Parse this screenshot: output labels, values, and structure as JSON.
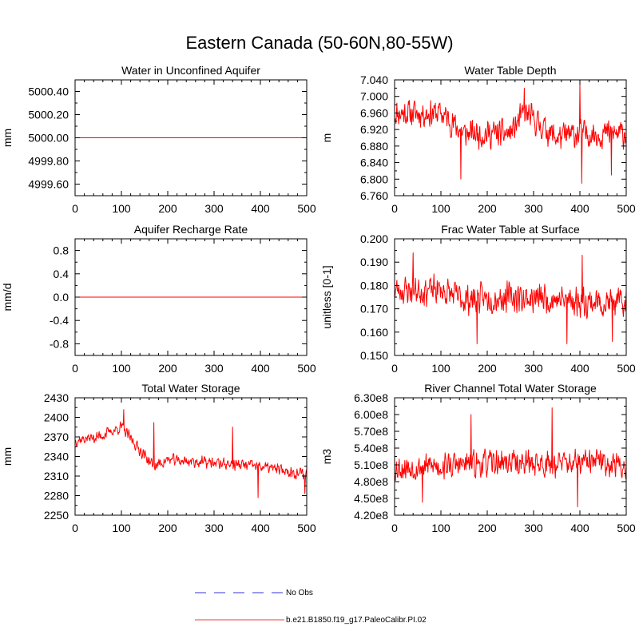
{
  "title": "Eastern Canada (50-60N,80-55W)",
  "colors": {
    "model": "#ff0000",
    "obs": "#9a9aee",
    "legend_model": "#f08080"
  },
  "legend": {
    "obs_label": "No Obs",
    "model_label": "b.e21.B1850.f19_g17.PaleoCalibr.PI.02"
  },
  "chart_data": [
    {
      "type": "line",
      "title": "Water in Unconfined Aquifer",
      "ylabel": "mm",
      "xlim": [
        0,
        500
      ],
      "ylim": [
        4999.5,
        5000.5
      ],
      "xticks": [
        0,
        100,
        200,
        300,
        400,
        500
      ],
      "xtick_labels": [
        "0",
        "100",
        "200",
        "300",
        "400",
        "500"
      ],
      "yticks": [
        4999.6,
        4999.8,
        5000.0,
        5000.2,
        5000.4
      ],
      "ytick_labels": [
        "4999.60",
        "4999.80",
        "5000.00",
        "5000.20",
        "5000.40"
      ],
      "series": {
        "name": "b.e21.B1850.f19_g17.PaleoCalibr.PI.02",
        "kind": "constant",
        "value": 5000.0
      }
    },
    {
      "type": "line",
      "title": "Water Table Depth",
      "ylabel": "m",
      "xlim": [
        0,
        500
      ],
      "ylim": [
        6.76,
        7.04
      ],
      "xticks": [
        0,
        100,
        200,
        300,
        400,
        500
      ],
      "xtick_labels": [
        "0",
        "100",
        "200",
        "300",
        "400",
        "500"
      ],
      "yticks": [
        6.76,
        6.8,
        6.84,
        6.88,
        6.92,
        6.96,
        7.0,
        7.04
      ],
      "ytick_labels": [
        "6.760",
        "6.800",
        "6.840",
        "6.880",
        "6.920",
        "6.960",
        "7.000",
        "7.040"
      ],
      "series": {
        "name": "b.e21.B1850.f19_g17.PaleoCalibr.PI.02",
        "kind": "noisy",
        "seed": 11,
        "control_x": [
          0,
          100,
          150,
          250,
          280,
          350,
          400,
          500
        ],
        "control_y": [
          6.96,
          6.96,
          6.91,
          6.91,
          6.96,
          6.9,
          6.91,
          6.91
        ],
        "noise": 0.045,
        "spikes": [
          [
            143,
            6.8
          ],
          [
            280,
            7.02
          ],
          [
            400,
            7.03
          ],
          [
            404,
            6.79
          ],
          [
            468,
            6.81
          ]
        ]
      }
    },
    {
      "type": "line",
      "title": "Aquifer Recharge Rate",
      "ylabel": "mm/d",
      "xlim": [
        0,
        500
      ],
      "ylim": [
        -1.0,
        1.0
      ],
      "xticks": [
        0,
        100,
        200,
        300,
        400,
        500
      ],
      "xtick_labels": [
        "0",
        "100",
        "200",
        "300",
        "400",
        "500"
      ],
      "yticks": [
        -0.8,
        -0.4,
        0.0,
        0.4,
        0.8
      ],
      "ytick_labels": [
        "-0.8",
        "-0.4",
        "0.0",
        "0.4",
        "0.8"
      ],
      "series": {
        "name": "b.e21.B1850.f19_g17.PaleoCalibr.PI.02",
        "kind": "constant",
        "value": 0.0
      }
    },
    {
      "type": "line",
      "title": "Frac Water Table at Surface",
      "ylabel": "unitless [0-1]",
      "xlim": [
        0,
        500
      ],
      "ylim": [
        0.15,
        0.2
      ],
      "xticks": [
        0,
        100,
        200,
        300,
        400,
        500
      ],
      "xtick_labels": [
        "0",
        "100",
        "200",
        "300",
        "400",
        "500"
      ],
      "yticks": [
        0.15,
        0.16,
        0.17,
        0.18,
        0.19,
        0.2
      ],
      "ytick_labels": [
        "0.150",
        "0.160",
        "0.170",
        "0.180",
        "0.190",
        "0.200"
      ],
      "series": {
        "name": "b.e21.B1850.f19_g17.PaleoCalibr.PI.02",
        "kind": "noisy",
        "seed": 23,
        "control_x": [
          0,
          100,
          150,
          250,
          350,
          500
        ],
        "control_y": [
          0.178,
          0.178,
          0.174,
          0.175,
          0.174,
          0.172
        ],
        "noise": 0.0085,
        "spikes": [
          [
            40,
            0.194
          ],
          [
            178,
            0.155
          ],
          [
            372,
            0.155
          ],
          [
            405,
            0.193
          ],
          [
            470,
            0.156
          ]
        ]
      }
    },
    {
      "type": "line",
      "title": "Total Water Storage",
      "ylabel": "mm",
      "xlim": [
        0,
        500
      ],
      "ylim": [
        2250,
        2430
      ],
      "xticks": [
        0,
        100,
        200,
        300,
        400,
        500
      ],
      "xtick_labels": [
        "0",
        "100",
        "200",
        "300",
        "400",
        "500"
      ],
      "yticks": [
        2250,
        2280,
        2310,
        2340,
        2370,
        2400,
        2430
      ],
      "ytick_labels": [
        "2250",
        "2280",
        "2310",
        "2340",
        "2370",
        "2400",
        "2430"
      ],
      "series": {
        "name": "b.e21.B1850.f19_g17.PaleoCalibr.PI.02",
        "kind": "noisy",
        "seed": 37,
        "control_x": [
          0,
          50,
          100,
          140,
          170,
          200,
          300,
          400,
          500
        ],
        "control_y": [
          2365,
          2370,
          2385,
          2350,
          2325,
          2335,
          2330,
          2325,
          2312
        ],
        "noise": 12,
        "spikes": [
          [
            105,
            2412
          ],
          [
            170,
            2392
          ],
          [
            340,
            2385
          ],
          [
            395,
            2277
          ],
          [
            496,
            2283
          ]
        ]
      }
    },
    {
      "type": "line",
      "title": "River Channel Total Water Storage",
      "ylabel": "m3",
      "xlim": [
        0,
        500
      ],
      "ylim": [
        420000000,
        630000000
      ],
      "xticks": [
        0,
        100,
        200,
        300,
        400,
        500
      ],
      "xtick_labels": [
        "0",
        "100",
        "200",
        "300",
        "400",
        "500"
      ],
      "yticks": [
        420000000,
        450000000,
        480000000,
        510000000,
        540000000,
        570000000,
        600000000,
        630000000
      ],
      "ytick_labels": [
        "4.20e8",
        "4.50e8",
        "4.80e8",
        "5.10e8",
        "5.40e8",
        "5.70e8",
        "6.00e8",
        "6.30e8"
      ],
      "series": {
        "name": "b.e21.B1850.f19_g17.PaleoCalibr.PI.02",
        "kind": "noisy",
        "seed": 53,
        "control_x": [
          0,
          150,
          250,
          350,
          450,
          500
        ],
        "control_y": [
          505000000,
          510000000,
          515000000,
          512000000,
          515000000,
          505000000
        ],
        "noise": 32000000,
        "spikes": [
          [
            165,
            600000000
          ],
          [
            340,
            612000000
          ],
          [
            395,
            435000000
          ],
          [
            60,
            443000000
          ]
        ]
      }
    }
  ]
}
